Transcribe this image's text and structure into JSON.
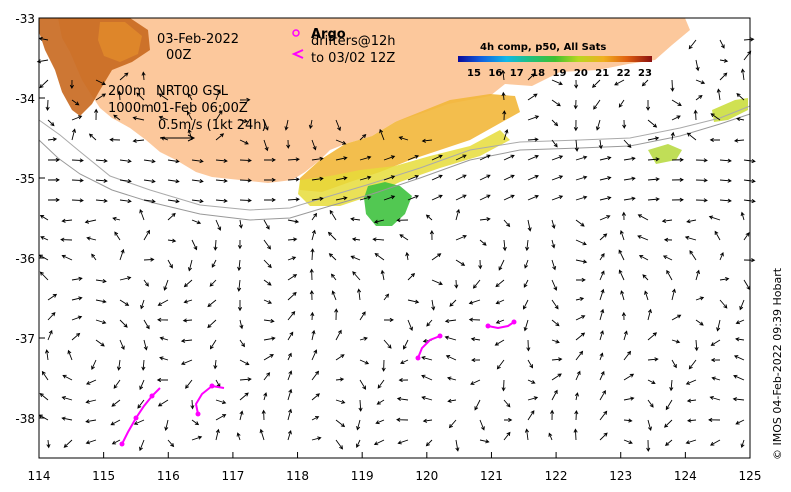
{
  "map": {
    "lon_range": [
      114,
      125
    ],
    "lat_range": [
      -38.5,
      -33
    ],
    "x_ticks": [
      "114",
      "115",
      "116",
      "117",
      "118",
      "119",
      "120",
      "121",
      "122",
      "123",
      "124",
      "125"
    ],
    "y_ticks": [
      "-33",
      "-34",
      "-35",
      "-36",
      "-37",
      "-38"
    ],
    "annotations": {
      "date": "03-Feb-2022",
      "time": "00Z",
      "isobath_200": "200m",
      "product": "NRT00 GSL",
      "isobath_1000": "1000m",
      "ref_time": "01-Feb 06:00Z",
      "scale_label": "0.5m/s (1kt 24h)"
    },
    "argo": {
      "label": "Argo",
      "drifters_label": "drifters@12h",
      "to_label": "to 03/02 12Z"
    },
    "colorbar": {
      "title": "4h comp, p50, All Sats",
      "ticks": [
        "15",
        "16",
        "17",
        "18",
        "19",
        "20",
        "21",
        "22",
        "23"
      ]
    },
    "credit": "© IMOS 04-Feb-2022 09:39 Hobart",
    "colors": {
      "land": "#fcc89c",
      "sst_warm": "#c0641c",
      "sst_green": "#3fc23f",
      "drifter": "#ff00ff"
    }
  }
}
